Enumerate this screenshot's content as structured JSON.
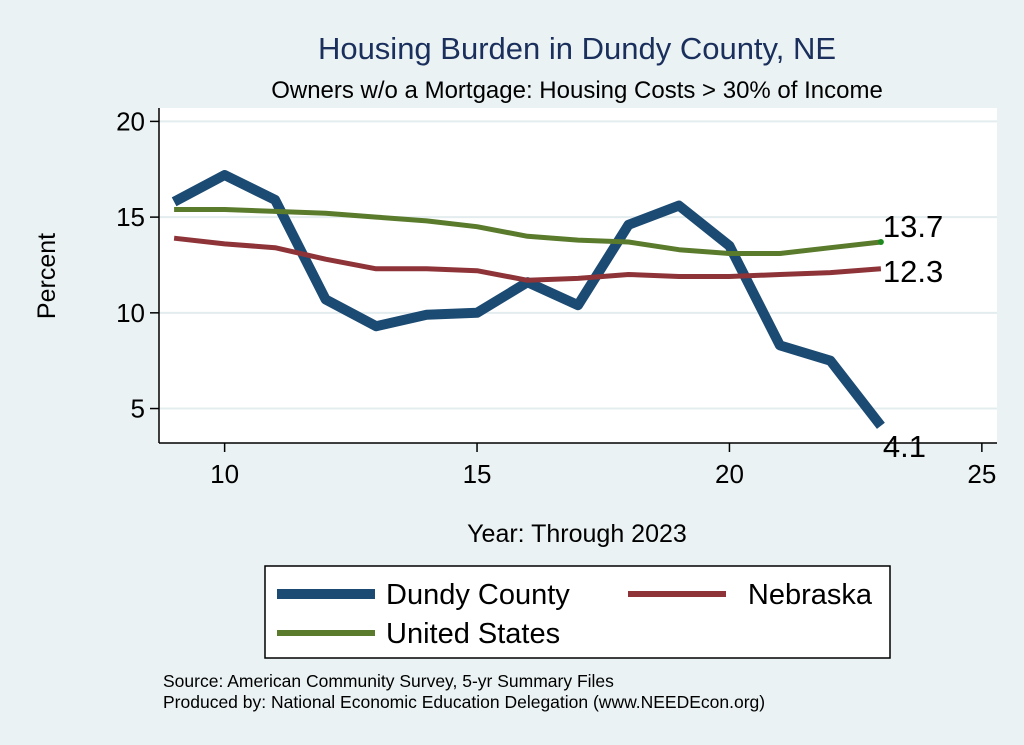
{
  "chart_data": {
    "type": "line",
    "title": "Housing Burden in Dundy County, NE",
    "subtitle": "Owners w/o a Mortgage: Housing Costs > 30% of Income",
    "xlabel": "Year: Through 2023",
    "ylabel": "Percent",
    "xlim": [
      8.7,
      25.3
    ],
    "ylim": [
      3.2,
      20.7
    ],
    "xticks": [
      10,
      15,
      20,
      25
    ],
    "yticks": [
      5,
      10,
      15,
      20
    ],
    "grid": true,
    "x": [
      9,
      10,
      11,
      12,
      13,
      14,
      15,
      16,
      17,
      18,
      19,
      20,
      21,
      22,
      23
    ],
    "series": [
      {
        "name": "Dundy County",
        "color": "#1b4a73",
        "values": [
          15.8,
          17.2,
          15.9,
          10.7,
          9.3,
          9.9,
          10.0,
          11.6,
          10.4,
          14.6,
          15.6,
          13.5,
          8.3,
          7.5,
          4.1
        ]
      },
      {
        "name": "Nebraska",
        "color": "#8e3438",
        "values": [
          13.9,
          13.6,
          13.4,
          12.8,
          12.3,
          12.3,
          12.2,
          11.7,
          11.8,
          12.0,
          11.9,
          11.9,
          12.0,
          12.1,
          12.3
        ]
      },
      {
        "name": "United States",
        "color": "#5a7a2c",
        "values": [
          15.4,
          15.4,
          15.3,
          15.2,
          15.0,
          14.8,
          14.5,
          14.0,
          13.8,
          13.7,
          13.3,
          13.1,
          13.1,
          13.4,
          13.7
        ]
      }
    ],
    "end_labels": [
      {
        "series": "United States",
        "text": "13.7"
      },
      {
        "series": "Nebraska",
        "text": "12.3"
      },
      {
        "series": "Dundy County",
        "text": "4.1"
      }
    ],
    "legend": {
      "position": "bottom",
      "items": [
        "Dundy County",
        "Nebraska",
        "United States"
      ]
    },
    "notes": [
      "Source: American Community Survey, 5-yr Summary Files",
      "Produced by: National Economic Education Delegation (www.NEEDEcon.org)"
    ]
  }
}
